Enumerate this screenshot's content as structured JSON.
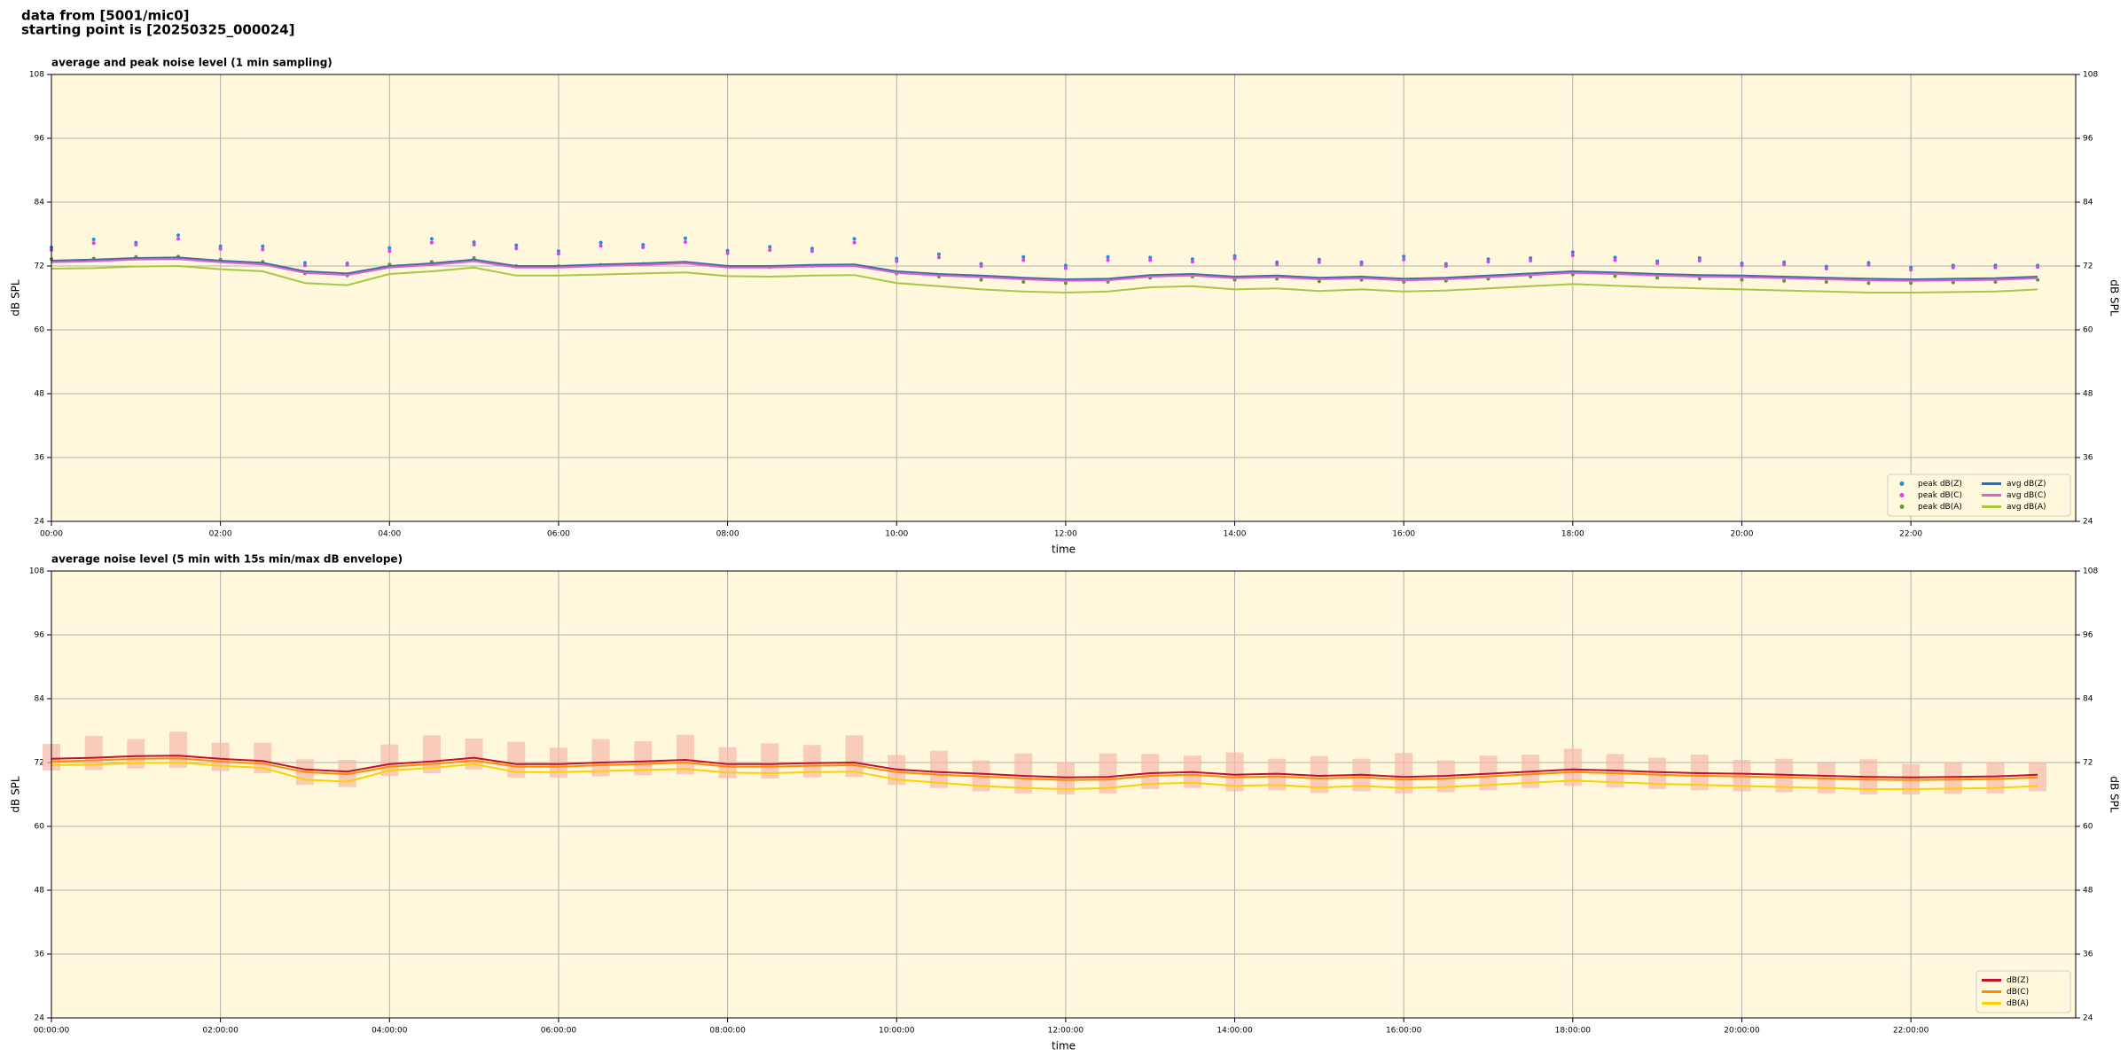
{
  "header": {
    "lines": [
      "data from [5001/mic0]",
      "starting point is [20250325_000024]"
    ]
  },
  "chart_data": [
    {
      "type": "line",
      "title": "average and peak noise level (1 min sampling)",
      "xlabel": "time",
      "ylabel": "dB SPL",
      "background": "#fff8dc",
      "grid": true,
      "legend": "lower right",
      "legend_columns": 2,
      "y_labels_both_sides": true,
      "xlim": [
        0,
        23.95
      ],
      "ylim": [
        24,
        108
      ],
      "xticks": [
        {
          "value": 0,
          "label": "00:00"
        },
        {
          "value": 2,
          "label": "02:00"
        },
        {
          "value": 4,
          "label": "04:00"
        },
        {
          "value": 6,
          "label": "06:00"
        },
        {
          "value": 8,
          "label": "08:00"
        },
        {
          "value": 10,
          "label": "10:00"
        },
        {
          "value": 12,
          "label": "12:00"
        },
        {
          "value": 14,
          "label": "14:00"
        },
        {
          "value": 16,
          "label": "16:00"
        },
        {
          "value": 18,
          "label": "18:00"
        },
        {
          "value": 20,
          "label": "20:00"
        },
        {
          "value": 22,
          "label": "22:00"
        }
      ],
      "yticks": [
        24,
        36,
        48,
        60,
        72,
        84,
        96,
        108
      ],
      "x": [
        0,
        0.5,
        1,
        1.5,
        2,
        2.5,
        3,
        3.5,
        4,
        4.5,
        5,
        5.5,
        6,
        6.5,
        7,
        7.5,
        8,
        8.5,
        9,
        9.5,
        10,
        10.5,
        11,
        11.5,
        12,
        12.5,
        13,
        13.5,
        14,
        14.5,
        15,
        15.5,
        16,
        16.5,
        17,
        17.5,
        18,
        18.5,
        19,
        19.5,
        20,
        20.5,
        21,
        21.5,
        22,
        22.5,
        23,
        23.5
      ],
      "series": [
        {
          "name": "peak dB(Z)",
          "kind": "scatter",
          "color": "#2a8ad8",
          "values": [
            75.5,
            77,
            76.4,
            77.8,
            75.7,
            75.7,
            72.6,
            72.5,
            75.4,
            77.1,
            76.5,
            75.9,
            74.8,
            76.4,
            76,
            77.2,
            74.9,
            75.6,
            75.3,
            77.1,
            73.4,
            74.2,
            72.4,
            73.7,
            72.1,
            73.7,
            73.6,
            73.3,
            73.9,
            72.7,
            73.2,
            72.7,
            73.8,
            72.4,
            73.3,
            73.5,
            74.6,
            73.6,
            72.9,
            73.5,
            72.5,
            72.7,
            71.9,
            72.6,
            71.7,
            72.1,
            72.1,
            72.1
          ]
        },
        {
          "name": "peak dB(C)",
          "kind": "scatter",
          "color": "#e040e0",
          "values": [
            75,
            76.3,
            76,
            77.1,
            75.2,
            75.1,
            72.1,
            72.2,
            74.8,
            76.4,
            76,
            75.3,
            74.3,
            75.8,
            75.5,
            76.5,
            74.4,
            75,
            74.8,
            76.4,
            72.9,
            73.6,
            72,
            73.1,
            71.6,
            73.1,
            73.1,
            72.8,
            73.4,
            72.3,
            72.7,
            72.3,
            73.2,
            72,
            72.8,
            73,
            74,
            73.1,
            72.5,
            73,
            72.1,
            72.3,
            71.5,
            72.2,
            71.3,
            71.7,
            71.7,
            71.8
          ]
        },
        {
          "name": "peak dB(A)",
          "kind": "scatter",
          "color": "#5a9a30",
          "values": [
            73.3,
            73.4,
            73.7,
            73.8,
            73.2,
            72.8,
            70.6,
            70.2,
            72.3,
            72.8,
            73.5,
            72,
            72,
            72.2,
            72.4,
            72.6,
            71.9,
            71.8,
            72,
            72.1,
            70.6,
            70,
            69.4,
            69,
            68.8,
            69,
            69.8,
            70,
            69.4,
            69.6,
            69.1,
            69.4,
            69,
            69.2,
            69.6,
            70,
            70.4,
            70.1,
            69.8,
            69.6,
            69.4,
            69.2,
            69,
            68.8,
            68.8,
            68.9,
            69,
            69.4
          ]
        },
        {
          "name": "avg dB(Z)",
          "kind": "line",
          "color": "#3a6f9f",
          "values": [
            73,
            73.2,
            73.5,
            73.6,
            73,
            72.6,
            71,
            70.6,
            72,
            72.5,
            73.2,
            72,
            72,
            72.3,
            72.5,
            72.8,
            72,
            72,
            72.2,
            72.3,
            71,
            70.5,
            70.2,
            69.8,
            69.5,
            69.6,
            70.3,
            70.5,
            70,
            70.2,
            69.8,
            70,
            69.6,
            69.8,
            70.2,
            70.6,
            71,
            70.8,
            70.5,
            70.3,
            70.2,
            70,
            69.8,
            69.6,
            69.5,
            69.6,
            69.7,
            70
          ]
        },
        {
          "name": "avg dB(C)",
          "kind": "line",
          "color": "#e060d0",
          "values": [
            72.7,
            72.9,
            73.2,
            73.3,
            72.7,
            72.3,
            70.7,
            70.3,
            71.7,
            72.2,
            72.9,
            71.7,
            71.7,
            72,
            72.2,
            72.5,
            71.7,
            71.7,
            71.9,
            72,
            70.7,
            70.2,
            69.9,
            69.5,
            69.2,
            69.3,
            70,
            70.2,
            69.7,
            69.9,
            69.5,
            69.7,
            69.3,
            69.5,
            69.9,
            70.3,
            70.7,
            70.5,
            70.2,
            70,
            69.9,
            69.7,
            69.5,
            69.3,
            69.2,
            69.3,
            69.4,
            69.7
          ]
        },
        {
          "name": "avg dB(A)",
          "kind": "line",
          "color": "#a8c840",
          "values": [
            71.5,
            71.6,
            71.9,
            72,
            71.4,
            71,
            68.8,
            68.4,
            70.5,
            71,
            71.7,
            70.2,
            70.2,
            70.4,
            70.6,
            70.8,
            70.1,
            70,
            70.2,
            70.3,
            68.8,
            68.2,
            67.6,
            67.2,
            67,
            67.2,
            68,
            68.2,
            67.6,
            67.8,
            67.3,
            67.6,
            67.2,
            67.4,
            67.8,
            68.2,
            68.6,
            68.3,
            68,
            67.8,
            67.6,
            67.4,
            67.2,
            67,
            67,
            67.1,
            67.2,
            67.6
          ]
        }
      ]
    },
    {
      "type": "line",
      "title": "average noise level (5 min with 15s min/max dB envelope)",
      "xlabel": "time",
      "ylabel": "dB SPL",
      "background": "#fff8dc",
      "grid": true,
      "legend": "lower right",
      "legend_columns": 1,
      "y_labels_both_sides": true,
      "xlim": [
        0,
        23.95
      ],
      "ylim": [
        24,
        108
      ],
      "xticks": [
        {
          "value": 0,
          "label": "00:00:00"
        },
        {
          "value": 2,
          "label": "02:00:00"
        },
        {
          "value": 4,
          "label": "04:00:00"
        },
        {
          "value": 6,
          "label": "06:00:00"
        },
        {
          "value": 8,
          "label": "08:00:00"
        },
        {
          "value": 10,
          "label": "10:00:00"
        },
        {
          "value": 12,
          "label": "12:00:00"
        },
        {
          "value": 14,
          "label": "14:00:00"
        },
        {
          "value": 16,
          "label": "16:00:00"
        },
        {
          "value": 18,
          "label": "18:00:00"
        },
        {
          "value": 20,
          "label": "20:00:00"
        },
        {
          "value": 22,
          "label": "22:00:00"
        }
      ],
      "yticks": [
        24,
        36,
        48,
        60,
        72,
        84,
        96,
        108
      ],
      "x": [
        0,
        0.5,
        1,
        1.5,
        2,
        2.5,
        3,
        3.5,
        4,
        4.5,
        5,
        5.5,
        6,
        6.5,
        7,
        7.5,
        8,
        8.5,
        9,
        9.5,
        10,
        10.5,
        11,
        11.5,
        12,
        12.5,
        13,
        13.5,
        14,
        14.5,
        15,
        15.5,
        16,
        16.5,
        17,
        17.5,
        18,
        18.5,
        19,
        19.5,
        20,
        20.5,
        21,
        21.5,
        22,
        22.5,
        23,
        23.5
      ],
      "band": {
        "color": "#f6b8aa",
        "lower": [
          70.5,
          70.6,
          70.9,
          71,
          70.4,
          70,
          67.8,
          67.4,
          69.5,
          70,
          70.7,
          69.2,
          69.2,
          69.4,
          69.6,
          69.8,
          69.1,
          69,
          69.2,
          69.3,
          67.8,
          67.2,
          66.6,
          66.2,
          66,
          66.2,
          67,
          67.2,
          66.6,
          66.8,
          66.3,
          66.6,
          66.2,
          66.4,
          66.8,
          67.2,
          67.6,
          67.3,
          67,
          66.8,
          66.6,
          66.4,
          66.2,
          66,
          66,
          66.1,
          66.2,
          66.6
        ],
        "upper": [
          75.5,
          77,
          76.4,
          77.8,
          75.7,
          75.7,
          72.6,
          72.5,
          75.4,
          77.1,
          76.5,
          75.9,
          74.8,
          76.4,
          76,
          77.2,
          74.9,
          75.6,
          75.3,
          77.1,
          73.4,
          74.2,
          72.4,
          73.7,
          72.1,
          73.7,
          73.6,
          73.3,
          73.9,
          72.7,
          73.2,
          72.7,
          73.8,
          72.4,
          73.3,
          73.5,
          74.6,
          73.6,
          72.9,
          73.5,
          72.5,
          72.7,
          71.9,
          72.6,
          71.7,
          72.1,
          72.1,
          72.1
        ]
      },
      "series": [
        {
          "name": "dB(Z)",
          "kind": "line",
          "color": "#c0102a",
          "values": [
            72.7,
            72.9,
            73.2,
            73.3,
            72.7,
            72.3,
            70.7,
            70.3,
            71.7,
            72.2,
            72.9,
            71.7,
            71.7,
            72,
            72.2,
            72.5,
            71.7,
            71.7,
            71.9,
            72,
            70.7,
            70.2,
            69.9,
            69.5,
            69.2,
            69.3,
            70,
            70.2,
            69.7,
            69.9,
            69.5,
            69.7,
            69.3,
            69.5,
            69.9,
            70.3,
            70.7,
            70.5,
            70.2,
            70,
            69.9,
            69.7,
            69.5,
            69.3,
            69.2,
            69.3,
            69.4,
            69.7
          ]
        },
        {
          "name": "dB(C)",
          "kind": "line",
          "color": "#ff8c00",
          "values": [
            72.2,
            72.4,
            72.7,
            72.8,
            72.2,
            71.8,
            70.2,
            69.8,
            71.2,
            71.7,
            72.4,
            71.2,
            71.2,
            71.5,
            71.7,
            72,
            71.2,
            71.2,
            71.4,
            71.5,
            70.2,
            69.7,
            69.4,
            69,
            68.7,
            68.8,
            69.5,
            69.7,
            69.2,
            69.4,
            69,
            69.2,
            68.8,
            69,
            69.4,
            69.8,
            70.2,
            70,
            69.7,
            69.5,
            69.4,
            69.2,
            69,
            68.8,
            68.7,
            68.8,
            68.9,
            69.2
          ]
        },
        {
          "name": "dB(A)",
          "kind": "line",
          "color": "#ffd000",
          "values": [
            71.5,
            71.6,
            71.9,
            72,
            71.4,
            71,
            68.8,
            68.4,
            70.5,
            71,
            71.7,
            70.2,
            70.2,
            70.4,
            70.6,
            70.8,
            70.1,
            70,
            70.2,
            70.3,
            68.8,
            68.2,
            67.6,
            67.2,
            67,
            67.2,
            68,
            68.2,
            67.6,
            67.8,
            67.3,
            67.6,
            67.2,
            67.4,
            67.8,
            68.2,
            68.6,
            68.3,
            68,
            67.8,
            67.6,
            67.4,
            67.2,
            67,
            67,
            67.1,
            67.2,
            67.6
          ]
        }
      ]
    }
  ]
}
